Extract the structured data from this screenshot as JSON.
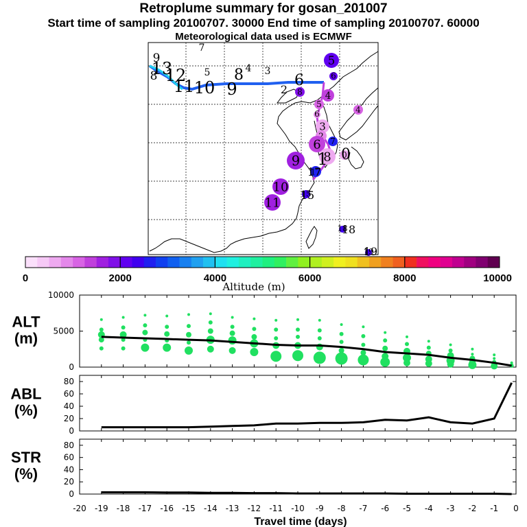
{
  "title": {
    "line1": "Retroplume summary for gosan_201007",
    "line2": "Start time of sampling 20100707. 30000     End time of sampling 20100707. 60000",
    "line3": "Meteorological data used is ECMWF"
  },
  "chart_data": [
    {
      "type": "map",
      "name": "retroplume-map",
      "trajectory_labels": [
        {
          "text": "9",
          "alt_m": 3800
        },
        {
          "text": "8",
          "alt_m": 3600
        },
        {
          "text": "13",
          "alt_m": 3500
        },
        {
          "text": "12",
          "alt_m": 3400
        },
        {
          "text": "11",
          "alt_m": 3300
        },
        {
          "text": "10",
          "alt_m": 3100
        },
        {
          "text": "9",
          "alt_m": 3000
        },
        {
          "text": "8",
          "alt_m": 2800
        },
        {
          "text": "7",
          "alt_m": 3700
        },
        {
          "text": "6",
          "alt_m": 2400
        },
        {
          "text": "5",
          "alt_m": 2200
        },
        {
          "text": "4",
          "alt_m": 2000
        },
        {
          "text": "3",
          "alt_m": 2100
        },
        {
          "text": "2",
          "alt_m": 1500
        },
        {
          "text": "1",
          "alt_m": 600
        },
        {
          "text": "0",
          "alt_m": 500
        },
        {
          "text": "17",
          "alt_m": 2600
        },
        {
          "text": "15",
          "alt_m": 2400
        },
        {
          "text": "18",
          "alt_m": 2300
        },
        {
          "text": "19",
          "alt_m": 2400
        }
      ],
      "cluster_points": [
        {
          "label": "5",
          "alt_m": 2100
        },
        {
          "label": "6",
          "alt_m": 2200
        },
        {
          "label": "8",
          "alt_m": 1800
        },
        {
          "label": "4",
          "alt_m": 1300
        },
        {
          "label": "5",
          "alt_m": 1200
        },
        {
          "label": "4",
          "alt_m": 1100
        },
        {
          "label": "6",
          "alt_m": 900
        },
        {
          "label": "3",
          "alt_m": 700
        },
        {
          "label": "2",
          "alt_m": 800
        },
        {
          "label": "6",
          "alt_m": 1400
        },
        {
          "label": "7",
          "alt_m": 2600
        },
        {
          "label": "8",
          "alt_m": 600
        },
        {
          "label": "0",
          "alt_m": 500
        },
        {
          "label": "9",
          "alt_m": 1600
        },
        {
          "label": "10",
          "alt_m": 1500
        },
        {
          "label": "11",
          "alt_m": 1500
        },
        {
          "label": "17",
          "alt_m": 2600
        },
        {
          "label": "15",
          "alt_m": 2400
        },
        {
          "label": "18",
          "alt_m": 2300
        },
        {
          "label": "19",
          "alt_m": 2400
        }
      ]
    },
    {
      "type": "colorbar",
      "name": "altitude-colorbar",
      "xlabel": "Altitude (m)",
      "range": [
        0,
        10000
      ],
      "tick_labels": [
        "0",
        "2000",
        "4000",
        "6000",
        "8000",
        "10000"
      ],
      "colors": [
        "#fbe0fb",
        "#f6c9f6",
        "#eeaaf0",
        "#e488ea",
        "#d864e4",
        "#c040dc",
        "#a020e0",
        "#8010e8",
        "#6000f0",
        "#4000f0",
        "#2020f0",
        "#1040f0",
        "#1060f0",
        "#1880f0",
        "#20a0f0",
        "#20c0f0",
        "#20e0f0",
        "#20f0e0",
        "#20f0c0",
        "#20f0a0",
        "#20f080",
        "#30f060",
        "#60f040",
        "#90f020",
        "#b0f020",
        "#d0f020",
        "#f0f020",
        "#f0e020",
        "#f0c020",
        "#f0a020",
        "#f08020",
        "#f06020",
        "#f03020",
        "#f01060",
        "#f00080",
        "#e00090",
        "#c00090",
        "#a00080",
        "#800070",
        "#600050"
      ]
    },
    {
      "type": "line",
      "name": "altitude-panel",
      "ylabel": "ALT\n(m)",
      "ylim": [
        0,
        10000
      ],
      "yticks": [
        "0",
        "5000",
        "10000"
      ],
      "x": [
        -19,
        -18,
        -17,
        -16,
        -15,
        -14,
        -13,
        -12,
        -11,
        -10,
        -9,
        -8,
        -7,
        -6,
        -5,
        -4,
        -3,
        -2,
        -1,
        -0.2
      ],
      "series": [
        {
          "name": "median altitude",
          "values": [
            4200,
            4100,
            4000,
            3900,
            3800,
            3700,
            3500,
            3300,
            3100,
            3000,
            3000,
            2800,
            2500,
            2100,
            1900,
            1700,
            1300,
            1000,
            600,
            200
          ]
        }
      ],
      "bubbles": [
        {
          "x": -19,
          "y": [
            6600,
            5200,
            4500,
            3800,
            2600
          ],
          "r": [
            2,
            3,
            5,
            4,
            3
          ]
        },
        {
          "x": -18,
          "y": [
            6900,
            5500,
            4500,
            3800,
            2600
          ],
          "r": [
            2,
            3,
            5,
            3,
            3
          ]
        },
        {
          "x": -17,
          "y": [
            7200,
            5800,
            4800,
            3800,
            2700
          ],
          "r": [
            2,
            3,
            4,
            3,
            6
          ]
        },
        {
          "x": -16,
          "y": [
            7100,
            5600,
            4600,
            3700,
            2700
          ],
          "r": [
            2,
            3,
            4,
            3,
            6
          ]
        },
        {
          "x": -15,
          "y": [
            7300,
            5700,
            4500,
            3400,
            2300
          ],
          "r": [
            2,
            3,
            4,
            3,
            6
          ]
        },
        {
          "x": -14,
          "y": [
            7400,
            6200,
            5000,
            3800,
            2500
          ],
          "r": [
            2,
            3,
            4,
            6,
            5
          ]
        },
        {
          "x": -13,
          "y": [
            6900,
            5600,
            4700,
            3700,
            2300
          ],
          "r": [
            2,
            3,
            4,
            6,
            5
          ]
        },
        {
          "x": -12,
          "y": [
            6700,
            5300,
            4200,
            3300,
            2100
          ],
          "r": [
            2,
            3,
            4,
            6,
            6
          ]
        },
        {
          "x": -11,
          "y": [
            6500,
            5200,
            4000,
            3000,
            1500
          ],
          "r": [
            2,
            3,
            3,
            5,
            8
          ]
        },
        {
          "x": -10,
          "y": [
            6600,
            5200,
            4200,
            3000,
            1600
          ],
          "r": [
            2,
            3,
            3,
            5,
            8
          ]
        },
        {
          "x": -9,
          "y": [
            6500,
            5100,
            4000,
            2800,
            1300
          ],
          "r": [
            2,
            3,
            3,
            5,
            9
          ]
        },
        {
          "x": -8,
          "y": [
            5900,
            4600,
            3500,
            2300,
            1200
          ],
          "r": [
            2,
            3,
            3,
            4,
            9
          ]
        },
        {
          "x": -7,
          "y": [
            5600,
            4300,
            3100,
            2000,
            1000
          ],
          "r": [
            2,
            3,
            3,
            4,
            8
          ]
        },
        {
          "x": -6,
          "y": [
            4800,
            3700,
            2600,
            1500,
            700
          ],
          "r": [
            2,
            3,
            4,
            5,
            7
          ]
        },
        {
          "x": -5,
          "y": [
            4200,
            3200,
            2200,
            1300,
            600
          ],
          "r": [
            2,
            3,
            5,
            6,
            5
          ]
        },
        {
          "x": -4,
          "y": [
            3600,
            2700,
            1900,
            1100,
            500
          ],
          "r": [
            2,
            3,
            4,
            5,
            5
          ]
        },
        {
          "x": -3,
          "y": [
            3100,
            2300,
            1600,
            900,
            400
          ],
          "r": [
            2,
            3,
            5,
            6,
            5
          ]
        },
        {
          "x": -2,
          "y": [
            2500,
            1800,
            1200,
            600,
            300
          ],
          "r": [
            2,
            2,
            4,
            5,
            6
          ]
        },
        {
          "x": -1,
          "y": [
            1700,
            1200,
            700,
            400,
            150
          ],
          "r": [
            2,
            2,
            3,
            4,
            5
          ]
        },
        {
          "x": -0.2,
          "y": [
            600,
            350,
            200
          ],
          "r": [
            2,
            2,
            3
          ]
        }
      ]
    },
    {
      "type": "line",
      "name": "abl-panel",
      "ylabel": "ABL\n(%)",
      "ylim": [
        0,
        90
      ],
      "yticks": [
        "0",
        "20",
        "40",
        "60",
        "80"
      ],
      "x": [
        -19,
        -18,
        -17,
        -16,
        -15,
        -14,
        -13,
        -12,
        -11,
        -10,
        -9,
        -8,
        -7,
        -6,
        -5,
        -4,
        -3,
        -2,
        -1,
        -0.2
      ],
      "series": [
        {
          "name": "ABL fraction",
          "values": [
            6,
            6,
            6,
            6,
            6,
            7,
            8,
            9,
            12,
            12,
            13,
            13,
            14,
            18,
            17,
            22,
            14,
            12,
            20,
            78
          ]
        }
      ]
    },
    {
      "type": "line",
      "name": "str-panel",
      "ylabel": "STR\n(%)",
      "ylim": [
        0,
        90
      ],
      "yticks": [
        "0",
        "20",
        "40",
        "60",
        "80"
      ],
      "xlabel": "Travel time (days)",
      "xlim": [
        -20,
        0
      ],
      "xticks": [
        "-20",
        "-19",
        "-18",
        "-17",
        "-16",
        "-15",
        "-14",
        "-13",
        "-12",
        "-11",
        "-10",
        "-9",
        "-8",
        "-7",
        "-6",
        "-5",
        "-4",
        "-3",
        "-2",
        "-1",
        "0"
      ],
      "x": [
        -19,
        -18,
        -17,
        -16,
        -15,
        -14,
        -13,
        -12,
        -11,
        -10,
        -9,
        -8,
        -7,
        -6,
        -5,
        -4,
        -3,
        -2,
        -1,
        -0.2
      ],
      "series": [
        {
          "name": "stratospheric fraction",
          "values": [
            3,
            3,
            3,
            2.5,
            2.5,
            2,
            2,
            1.5,
            1.5,
            1,
            1,
            1,
            1,
            1,
            0.5,
            0.5,
            0.5,
            0.5,
            0.5,
            0
          ]
        }
      ]
    }
  ]
}
